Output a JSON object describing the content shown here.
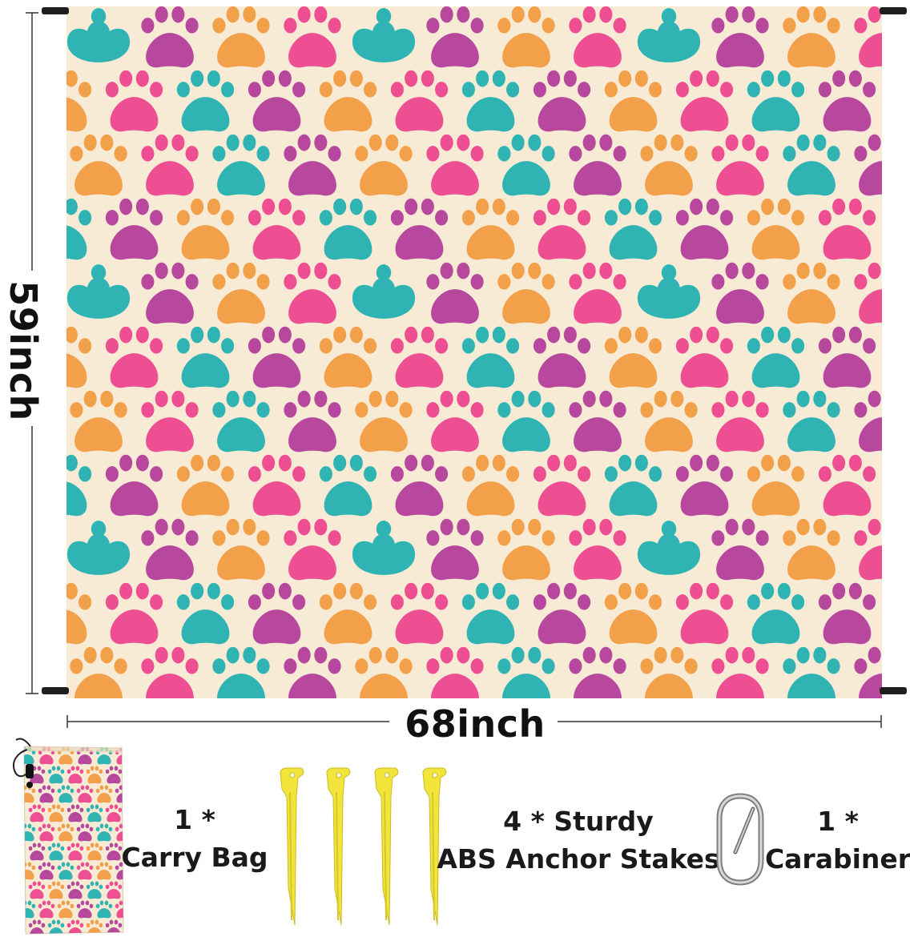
{
  "dimensions": {
    "height_label": "59inch",
    "width_label": "68inch"
  },
  "accessories": {
    "bag": {
      "qty": "1 *",
      "name": "Carry Bag"
    },
    "stakes": {
      "qty": "4 * Sturdy",
      "name": "ABS Anchor Stakes"
    },
    "carabiner": {
      "qty": "1 *",
      "name": "Carabiner"
    }
  },
  "pattern_colors": {
    "background": "#f8ebd6",
    "teal": "#2fb3b3",
    "purple": "#b8489e",
    "orange": "#f3a04a",
    "pink": "#ee4f92",
    "stake_yellow": "#f2e43a"
  }
}
